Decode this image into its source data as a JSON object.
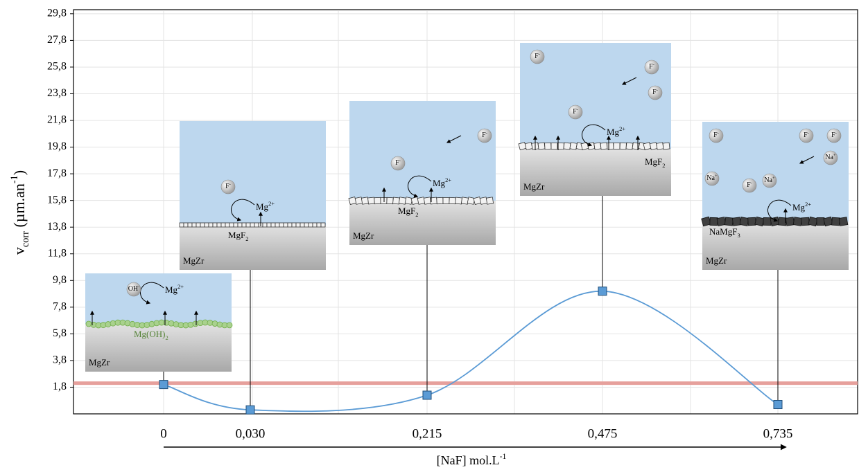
{
  "chart_data": {
    "type": "line",
    "y_label": {
      "main": "v",
      "sub": "corr",
      "rest": " (µm.an",
      "sup": "-1",
      "end": ")"
    },
    "x_label": {
      "main": "[NaF] mol.L",
      "sup": "-1"
    },
    "categories": [
      "0",
      "0,030",
      "0,215",
      "0,475",
      "0,735"
    ],
    "series": [
      {
        "color": "#5b9bd5",
        "values": [
          2.0,
          0.1,
          1.2,
          9.0,
          0.5
        ]
      }
    ],
    "ylim": [
      -0.2,
      30
    ],
    "yticks": [
      {
        "value": 1.8,
        "label": "1,8"
      },
      {
        "value": 3.8,
        "label": "3,8"
      },
      {
        "value": 5.8,
        "label": "5,8"
      },
      {
        "value": 7.8,
        "label": "7,8"
      },
      {
        "value": 9.8,
        "label": "9,8"
      },
      {
        "value": 11.8,
        "label": "11,8"
      },
      {
        "value": 13.8,
        "label": "13,8"
      },
      {
        "value": 15.8,
        "label": "15,8"
      },
      {
        "value": 17.8,
        "label": "17,8"
      },
      {
        "value": 19.8,
        "label": "19,8"
      },
      {
        "value": 21.8,
        "label": "21,8"
      },
      {
        "value": 23.8,
        "label": "23,8"
      },
      {
        "value": 25.8,
        "label": "25,8"
      },
      {
        "value": 27.8,
        "label": "27,8"
      },
      {
        "value": 29.8,
        "label": "29,8"
      }
    ],
    "grid": true,
    "reference_line": {
      "value": 2.1,
      "color": "#e6a09c"
    },
    "insets": [
      {
        "substrate": "MgZr",
        "anion": "OH",
        "anion_sup": "-",
        "cation": "Mg",
        "cation_sup": "2+",
        "layer": "Mg(OH)",
        "layer_sub": "2"
      },
      {
        "substrate": "MgZr",
        "anion": "F",
        "anion_sup": "-",
        "cation": "Mg",
        "cation_sup": "2+",
        "layer": "MgF",
        "layer_sub": "2"
      },
      {
        "substrate": "MgZr",
        "anion": "F",
        "anion_sup": "-",
        "cation": "Mg",
        "cation_sup": "2+",
        "layer": "MgF",
        "layer_sub": "2"
      },
      {
        "substrate": "MgZr",
        "anion": "F",
        "anion_sup": "-",
        "cation": "Mg",
        "cation_sup": "2+",
        "layer": "MgF",
        "layer_sub": "2"
      },
      {
        "substrate": "MgZr",
        "anion": "F",
        "anion_sup": "-",
        "cation": "Mg",
        "cation_sup": "2+",
        "layer": "NaMgF",
        "layer_sub": "3",
        "extra": "Na",
        "extra_sup": "+"
      }
    ]
  }
}
